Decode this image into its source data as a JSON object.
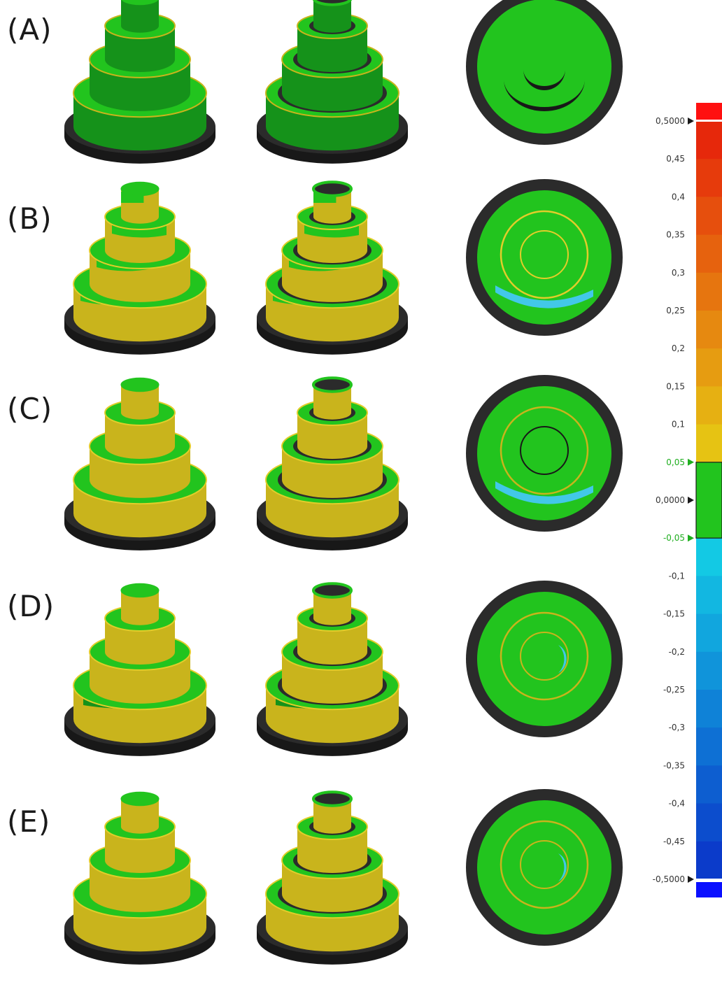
{
  "rows": [
    {
      "label": "(A)",
      "variant": "A"
    },
    {
      "label": "(B)",
      "variant": "B"
    },
    {
      "label": "(C)",
      "variant": "C"
    },
    {
      "label": "(D)",
      "variant": "D"
    },
    {
      "label": "(E)",
      "variant": "E"
    }
  ],
  "views": [
    "isometric-solid",
    "isometric-hollow",
    "top-view"
  ],
  "colorscale": {
    "ticks": [
      "0,5000",
      "0,45",
      "0,4",
      "0,35",
      "0,3",
      "0,25",
      "0,2",
      "0,15",
      "0,1",
      "0,05",
      "0,0000",
      "-0,05",
      "-0,1",
      "-0,15",
      "-0,2",
      "-0,25",
      "-0,3",
      "-0,35",
      "-0,4",
      "-0,45",
      "-0,5000"
    ],
    "max": 0.5,
    "min": -0.5,
    "tolerance": [
      -0.05,
      0.05
    ],
    "tolerance_color": "#22c41e",
    "above_color": "#ff1010",
    "below_color": "#0a10ff"
  },
  "colors": {
    "green": "#22c41e",
    "green_dark": "#15921a",
    "yellow": "#c9b41c",
    "yellow_light": "#e2cd2a",
    "cyan": "#42c8e8",
    "base_dark": "#2b2b2b",
    "base_side": "#181818"
  }
}
